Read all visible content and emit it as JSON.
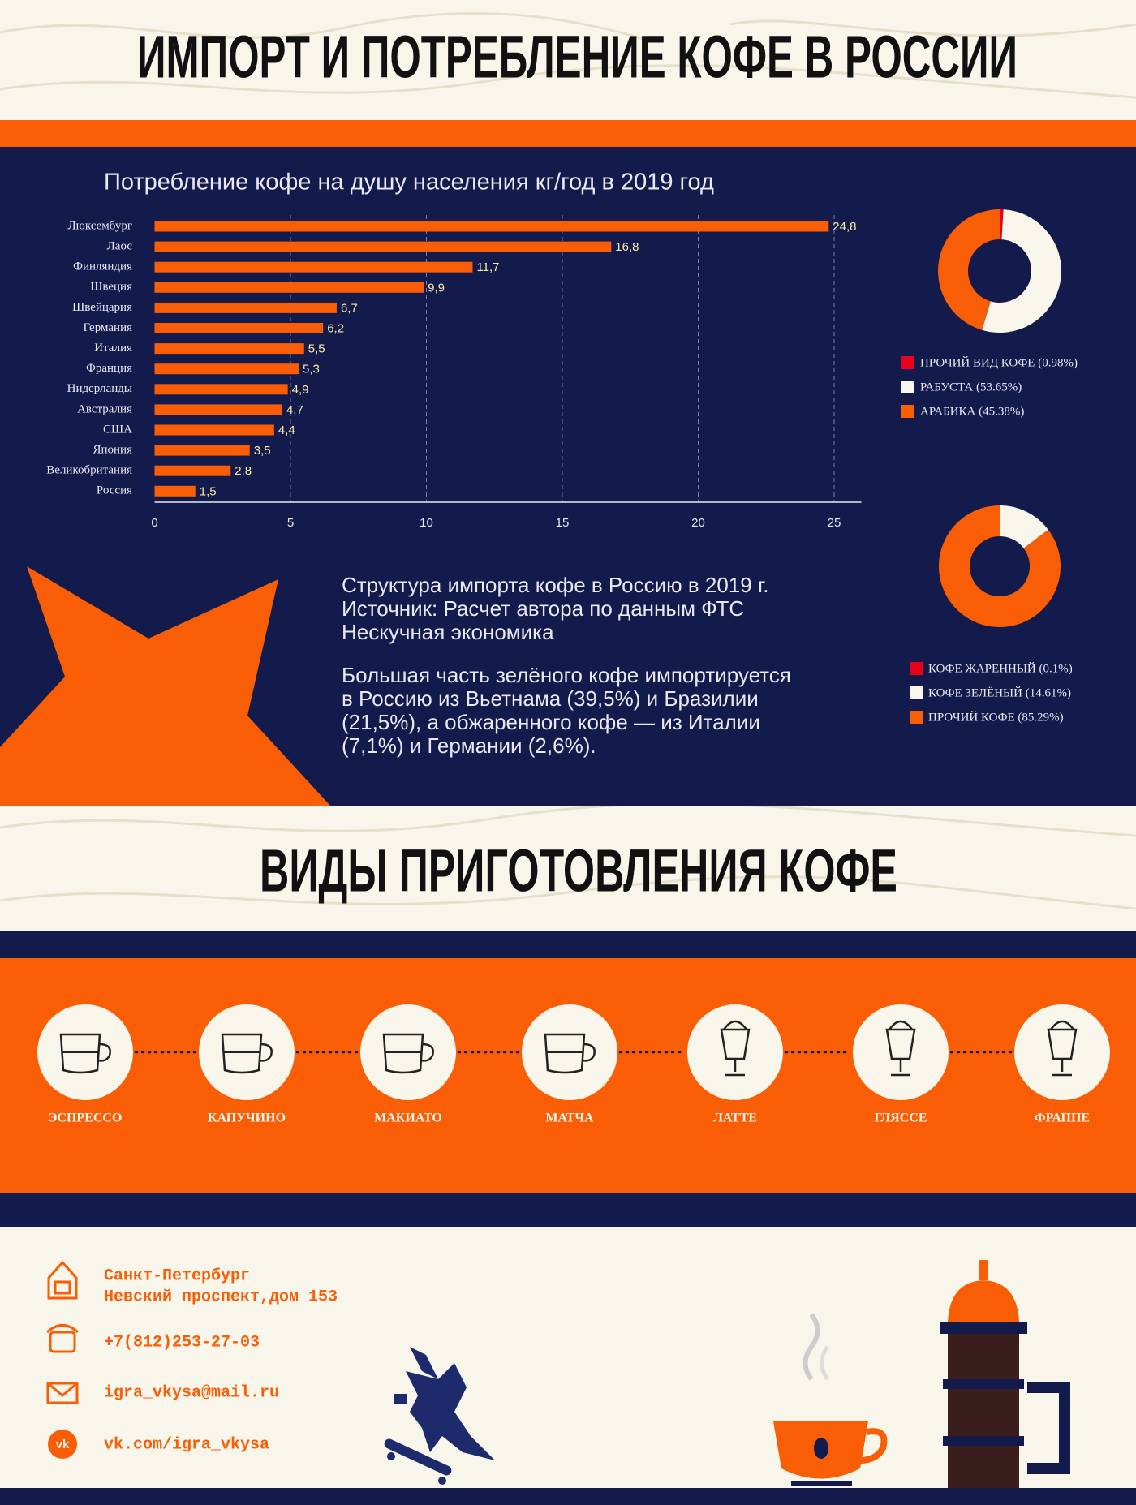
{
  "header": {
    "title": "ИМПОРТ И ПОТРЕБЛЕНИЕ КОФЕ В РОССИИ"
  },
  "chart_data": [
    {
      "type": "bar",
      "orientation": "horizontal",
      "title": "Потребление кофе на душу населения кг/год в 2019 год",
      "categories": [
        "Люксембург",
        "Лаос",
        "Финляндия",
        "Швеция",
        "Швейцария",
        "Германия",
        "Италия",
        "Франция",
        "Нидерланды",
        "Австралия",
        "США",
        "Япония",
        "Великобритания",
        "Россия"
      ],
      "values": [
        24.8,
        16.8,
        11.7,
        9.9,
        6.7,
        6.2,
        5.5,
        5.3,
        4.9,
        4.7,
        4.4,
        3.5,
        2.8,
        1.5
      ],
      "value_labels": [
        "24,8",
        "16,8",
        "11,7",
        "9,9",
        "6,7",
        "6,2",
        "5,5",
        "5,3",
        "4,9",
        "4,7",
        "4,4",
        "3,5",
        "2,8",
        "1,5"
      ],
      "color": "#f95d06",
      "xlim": [
        0,
        26
      ],
      "xticks": [
        0,
        5,
        10,
        15,
        20,
        25
      ],
      "grid": true
    },
    {
      "type": "donut",
      "categories": [
        "ПРОЧИЙ ВИД КОФЕ (0.98%)",
        "РАБУСТА (53.65%)",
        "АРАБИКА (45.38%)"
      ],
      "values": [
        0.98,
        53.65,
        45.38
      ],
      "colors": [
        "#e8001c",
        "#f8f5ea",
        "#f95d06"
      ]
    },
    {
      "type": "donut",
      "categories": [
        "КОФЕ ЖАРЕННЫЙ (0.1%)",
        "КОФЕ ЗЕЛЁНЫЙ (14.61%)",
        "ПРОЧИЙ КОФЕ (85.29%)"
      ],
      "values": [
        0.1,
        14.61,
        85.29
      ],
      "colors": [
        "#e8001c",
        "#f8f5ea",
        "#f95d06"
      ]
    }
  ],
  "import_text": {
    "source": [
      "Структура импорта кофе в Россию в 2019 г.",
      "Источник: Расчет автора по данным ФТС",
      "Нескучная экономика"
    ],
    "paragraph": [
      "Большая часть зелёного кофе импортируется",
      "в Россию из Вьетнама (39,5%) и Бразилии",
      "(21,5%), а обжаренного кофе — из Италии",
      "(7,1%) и Германии (2,6%)."
    ]
  },
  "section2": {
    "title": "ВИДЫ ПРИГОТОВЛЕНИЯ КОФЕ",
    "drinks": [
      "ЭСПРЕССО",
      "КАПУЧИНО",
      "МАКИАТО",
      "МАТЧА",
      "ЛАТТЕ",
      "ГЛЯССЕ",
      "ФРАППЕ"
    ]
  },
  "contacts": {
    "address": [
      "Санкт-Петербург",
      "Невский проспект,дом 153"
    ],
    "phone": "+7(812)253-27-03",
    "email": "igra_vkysa@mail.ru",
    "vk": "vk.com/igra_vkysa"
  }
}
